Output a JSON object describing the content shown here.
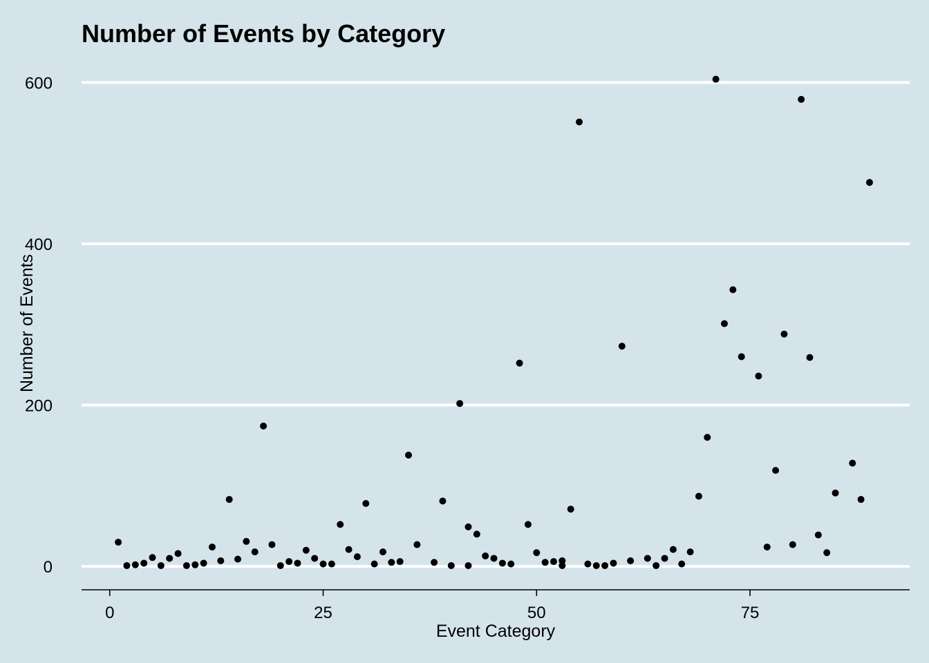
{
  "chart_data": {
    "type": "scatter",
    "title": "Number of Events by Category",
    "xlabel": "Event Category",
    "ylabel": "Number of Events",
    "xlim": [
      -3.3,
      93.7
    ],
    "ylim": [
      -29,
      608
    ],
    "x_ticks": [
      0,
      25,
      50,
      75
    ],
    "y_ticks": [
      0,
      200,
      400,
      600
    ],
    "grid": "horizontal",
    "background_color": "#d5e4eb",
    "point_color": "#000000",
    "points": [
      {
        "x": 1,
        "y": 30
      },
      {
        "x": 2,
        "y": 1
      },
      {
        "x": 3,
        "y": 2
      },
      {
        "x": 4,
        "y": 4
      },
      {
        "x": 5,
        "y": 11
      },
      {
        "x": 6,
        "y": 1
      },
      {
        "x": 7,
        "y": 10
      },
      {
        "x": 8,
        "y": 16
      },
      {
        "x": 9,
        "y": 1
      },
      {
        "x": 10,
        "y": 2
      },
      {
        "x": 11,
        "y": 4
      },
      {
        "x": 12,
        "y": 24
      },
      {
        "x": 13,
        "y": 7
      },
      {
        "x": 14,
        "y": 83
      },
      {
        "x": 15,
        "y": 9
      },
      {
        "x": 16,
        "y": 31
      },
      {
        "x": 17,
        "y": 18
      },
      {
        "x": 18,
        "y": 174
      },
      {
        "x": 19,
        "y": 27
      },
      {
        "x": 20,
        "y": 1
      },
      {
        "x": 21,
        "y": 6
      },
      {
        "x": 22,
        "y": 4
      },
      {
        "x": 23,
        "y": 20
      },
      {
        "x": 24,
        "y": 10
      },
      {
        "x": 25,
        "y": 3
      },
      {
        "x": 26,
        "y": 3
      },
      {
        "x": 27,
        "y": 52
      },
      {
        "x": 28,
        "y": 21
      },
      {
        "x": 29,
        "y": 12
      },
      {
        "x": 30,
        "y": 78
      },
      {
        "x": 31,
        "y": 3
      },
      {
        "x": 32,
        "y": 18
      },
      {
        "x": 33,
        "y": 5
      },
      {
        "x": 34,
        "y": 6
      },
      {
        "x": 35,
        "y": 138
      },
      {
        "x": 36,
        "y": 27
      },
      {
        "x": 38,
        "y": 5
      },
      {
        "x": 39,
        "y": 81
      },
      {
        "x": 40,
        "y": 1
      },
      {
        "x": 41,
        "y": 202
      },
      {
        "x": 42,
        "y": 49
      },
      {
        "x": 42,
        "y": 1
      },
      {
        "x": 43,
        "y": 40
      },
      {
        "x": 44,
        "y": 13
      },
      {
        "x": 45,
        "y": 10
      },
      {
        "x": 46,
        "y": 4
      },
      {
        "x": 47,
        "y": 3
      },
      {
        "x": 48,
        "y": 252
      },
      {
        "x": 49,
        "y": 52
      },
      {
        "x": 50,
        "y": 17
      },
      {
        "x": 51,
        "y": 5
      },
      {
        "x": 52,
        "y": 6
      },
      {
        "x": 53,
        "y": 7
      },
      {
        "x": 53,
        "y": 1
      },
      {
        "x": 54,
        "y": 71
      },
      {
        "x": 55,
        "y": 551
      },
      {
        "x": 56,
        "y": 3
      },
      {
        "x": 57,
        "y": 1
      },
      {
        "x": 58,
        "y": 1
      },
      {
        "x": 59,
        "y": 4
      },
      {
        "x": 60,
        "y": 273
      },
      {
        "x": 61,
        "y": 7
      },
      {
        "x": 63,
        "y": 10
      },
      {
        "x": 64,
        "y": 1
      },
      {
        "x": 65,
        "y": 10
      },
      {
        "x": 66,
        "y": 21
      },
      {
        "x": 67,
        "y": 3
      },
      {
        "x": 68,
        "y": 18
      },
      {
        "x": 69,
        "y": 87
      },
      {
        "x": 70,
        "y": 160
      },
      {
        "x": 71,
        "y": 604
      },
      {
        "x": 72,
        "y": 301
      },
      {
        "x": 73,
        "y": 343
      },
      {
        "x": 74,
        "y": 260
      },
      {
        "x": 76,
        "y": 236
      },
      {
        "x": 77,
        "y": 24
      },
      {
        "x": 78,
        "y": 119
      },
      {
        "x": 79,
        "y": 288
      },
      {
        "x": 80,
        "y": 27
      },
      {
        "x": 81,
        "y": 579
      },
      {
        "x": 82,
        "y": 259
      },
      {
        "x": 83,
        "y": 39
      },
      {
        "x": 84,
        "y": 17
      },
      {
        "x": 85,
        "y": 91
      },
      {
        "x": 87,
        "y": 128
      },
      {
        "x": 88,
        "y": 83
      },
      {
        "x": 89,
        "y": 476
      }
    ]
  }
}
